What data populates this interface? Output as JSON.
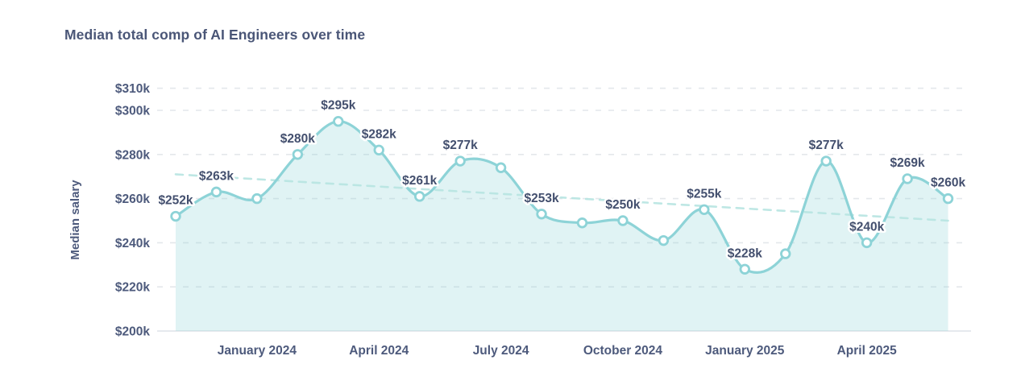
{
  "page": {
    "background": "#ffffff"
  },
  "chart_data": {
    "type": "area",
    "title": "Median total comp of AI Engineers over time",
    "ylabel": "Median salary",
    "xlabel": "",
    "ylim": [
      200,
      310
    ],
    "y_unit": "$ thousands",
    "grid": "dashed-horizontal",
    "legend": "none",
    "x": [
      "Nov 2023",
      "Dec 2023",
      "Jan 2024",
      "Feb 2024",
      "Mar 2024",
      "Apr 2024",
      "May 2024",
      "Jun 2024",
      "Jul 2024",
      "Aug 2024",
      "Sep 2024",
      "Oct 2024",
      "Nov 2024",
      "Dec 2024",
      "Jan 2025",
      "Feb 2025",
      "Mar 2025",
      "Apr 2025",
      "May 2025",
      "Jun 2025"
    ],
    "series": [
      {
        "name": "Median salary",
        "values": [
          252,
          263,
          260,
          280,
          295,
          282,
          261,
          277,
          274,
          253,
          249,
          250,
          241,
          255,
          228,
          235,
          277,
          240,
          269,
          260
        ],
        "point_labels": [
          "$252k",
          "$263k",
          null,
          "$280k",
          "$295k",
          "$282k",
          "$261k",
          "$277k",
          null,
          "$253k",
          null,
          "$250k",
          null,
          "$255k",
          "$228k",
          null,
          "$277k",
          "$240k",
          "$269k",
          "$260k"
        ]
      }
    ],
    "trend_line": {
      "style": "dashed",
      "from_value": 271,
      "to_value": 250
    },
    "y_ticks": [
      310,
      300,
      280,
      260,
      240,
      220,
      200
    ],
    "y_tick_labels": [
      "$310k",
      "$300k",
      "$280k",
      "$260k",
      "$240k",
      "$220k",
      "$200k"
    ],
    "x_ticks": [
      {
        "index": 2,
        "label": "January 2024"
      },
      {
        "index": 5,
        "label": "April 2024"
      },
      {
        "index": 8,
        "label": "July 2024"
      },
      {
        "index": 11,
        "label": "October 2024"
      },
      {
        "index": 14,
        "label": "January 2025"
      },
      {
        "index": 17,
        "label": "April 2025"
      }
    ]
  },
  "colors": {
    "title_text": "#4a5677",
    "axis_text": "#4d5a7c",
    "point_label_text": "#434f6e",
    "line": "#8dd3d7",
    "marker_fill": "#ffffff",
    "area_fill": "#8dd3d7",
    "area_opacity": "0.27",
    "trend": "#b7e5e2",
    "grid": "#e4e7eb",
    "axis_line": "#dde2e8",
    "background": "#ffffff"
  }
}
